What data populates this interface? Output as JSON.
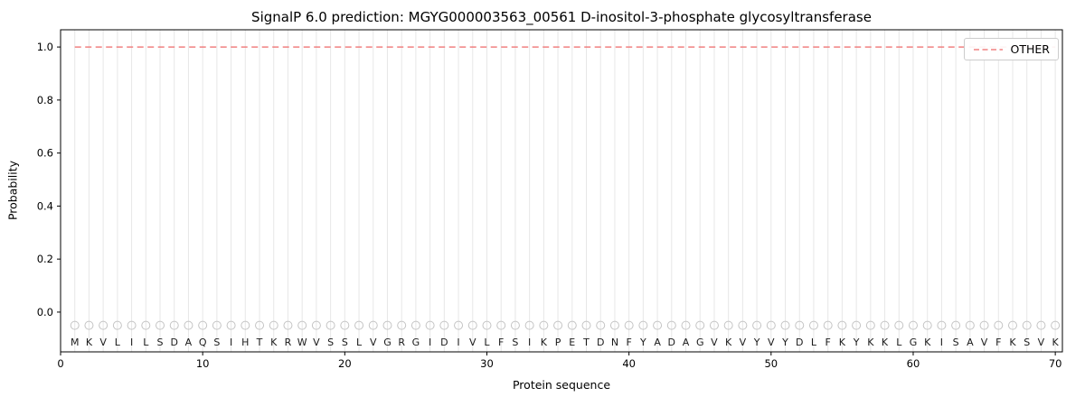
{
  "chart_data": {
    "type": "line",
    "title": "SignalP 6.0 prediction: MGYG000003563_00561 D-inositol-3-phosphate glycosyltransferase",
    "xlabel": "Protein sequence",
    "ylabel": "Probability",
    "xlim": [
      0,
      70.5
    ],
    "ylim": [
      -0.15,
      1.065
    ],
    "x_ticks": [
      0,
      10,
      20,
      30,
      40,
      50,
      60,
      70
    ],
    "y_ticks": [
      0,
      0.2,
      0.4,
      0.6,
      0.8,
      1
    ],
    "grid": "vertical gridline at every residue position 1-70",
    "legend_position": "upper right",
    "colors": {
      "grid": "#e7e7e7",
      "marker": "#c4c4c4",
      "frame": "#000000",
      "other_line": "#f08080"
    },
    "series": [
      {
        "name": "OTHER",
        "line_style": "dashed",
        "color": "#f08080",
        "constant_value": 1.0,
        "x_start": 1,
        "x_end": 70
      }
    ],
    "sequence": [
      "M",
      "K",
      "V",
      "L",
      "I",
      "L",
      "S",
      "D",
      "A",
      "Q",
      "S",
      "I",
      "H",
      "T",
      "K",
      "R",
      "W",
      "V",
      "S",
      "S",
      "L",
      "V",
      "G",
      "R",
      "G",
      "I",
      "D",
      "I",
      "V",
      "L",
      "F",
      "S",
      "I",
      "K",
      "P",
      "E",
      "T",
      "D",
      "N",
      "F",
      "Y",
      "A",
      "D",
      "A",
      "G",
      "V",
      "K",
      "V",
      "Y",
      "V",
      "Y",
      "D",
      "L",
      "F",
      "K",
      "Y",
      "K",
      "K",
      "L",
      "G",
      "K",
      "I",
      "S",
      "A",
      "V",
      "F",
      "K",
      "S",
      "V",
      "K"
    ],
    "sequence_marker": {
      "shape": "circle",
      "y": -0.05
    },
    "letter_y": -0.113
  }
}
